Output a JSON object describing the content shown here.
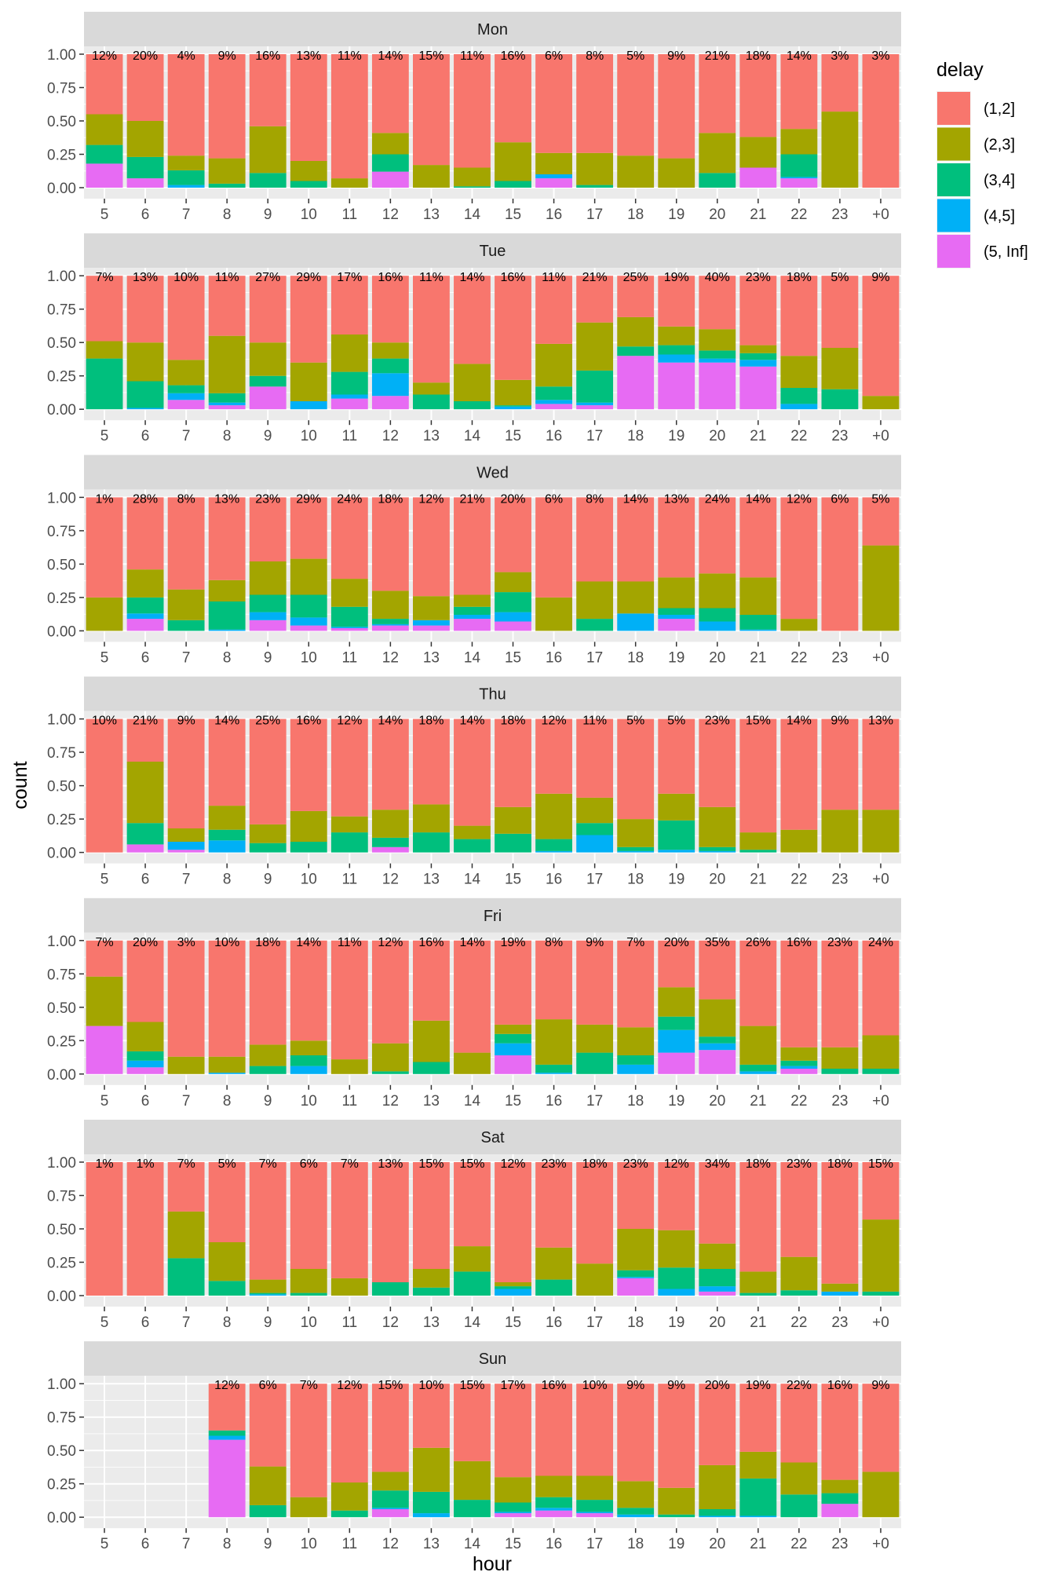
{
  "chart_data": {
    "type": "bar",
    "stacked": "fill",
    "facet_by": "weekday",
    "xlabel": "hour",
    "ylabel": "count",
    "ylim": [
      0,
      1
    ],
    "y_ticks": [
      "0.00",
      "0.25",
      "0.50",
      "0.75",
      "1.00"
    ],
    "x_categories": [
      "5",
      "6",
      "7",
      "8",
      "9",
      "10",
      "11",
      "12",
      "13",
      "14",
      "15",
      "16",
      "17",
      "18",
      "19",
      "20",
      "21",
      "22",
      "23",
      "+0"
    ],
    "legend": {
      "title": "delay",
      "position": "right",
      "entries": [
        {
          "label": "(1,2]",
          "color": "#F8766D"
        },
        {
          "label": "(2,3]",
          "color": "#A3A500"
        },
        {
          "label": "(3,4]",
          "color": "#00BF7D"
        },
        {
          "label": "(4,5]",
          "color": "#00B0F6"
        },
        {
          "label": "(5, Inf]",
          "color": "#E76BF3"
        }
      ]
    },
    "panel_background": "#EBEBEB",
    "strip_background": "#D9D9D9",
    "grid": true,
    "stack_note": "each bar lists cumulative tops of (5,Inf], (4,5], (3,4], (2,3] from bottom; (1,2] fills to 1.00",
    "panels": [
      {
        "label": "Mon",
        "pcts": [
          "12%",
          "20%",
          "4%",
          "9%",
          "16%",
          "13%",
          "11%",
          "14%",
          "15%",
          "11%",
          "16%",
          "6%",
          "8%",
          "5%",
          "9%",
          "21%",
          "18%",
          "14%",
          "3%",
          "3%"
        ],
        "stacks": [
          [
            0.18,
            0.18,
            0.32,
            0.55
          ],
          [
            0.07,
            0.07,
            0.23,
            0.5
          ],
          [
            0,
            0.02,
            0.13,
            0.24
          ],
          [
            0,
            0,
            0.03,
            0.22
          ],
          [
            0,
            0,
            0.11,
            0.46
          ],
          [
            0,
            0,
            0.05,
            0.2
          ],
          [
            0,
            0,
            0,
            0.07
          ],
          [
            0.12,
            0.12,
            0.25,
            0.41
          ],
          [
            0,
            0,
            0,
            0.17
          ],
          [
            0,
            0,
            0.01,
            0.15
          ],
          [
            0,
            0,
            0.05,
            0.34
          ],
          [
            0.07,
            0.1,
            0.1,
            0.26
          ],
          [
            0,
            0,
            0.02,
            0.26
          ],
          [
            0,
            0,
            0,
            0.24
          ],
          [
            0,
            0,
            0,
            0.22
          ],
          [
            0,
            0,
            0.11,
            0.41
          ],
          [
            0.15,
            0.15,
            0.15,
            0.38
          ],
          [
            0.07,
            0.08,
            0.25,
            0.44
          ],
          [
            0,
            0,
            0,
            0.57
          ],
          [
            0,
            0,
            0,
            0
          ]
        ]
      },
      {
        "label": "Tue",
        "pcts": [
          "7%",
          "13%",
          "10%",
          "11%",
          "27%",
          "29%",
          "17%",
          "16%",
          "11%",
          "14%",
          "16%",
          "11%",
          "21%",
          "25%",
          "19%",
          "40%",
          "23%",
          "18%",
          "5%",
          "9%"
        ],
        "stacks": [
          [
            0,
            0,
            0.38,
            0.51
          ],
          [
            0,
            0.01,
            0.21,
            0.5
          ],
          [
            0.07,
            0.12,
            0.18,
            0.37
          ],
          [
            0.03,
            0.05,
            0.12,
            0.55
          ],
          [
            0.17,
            0.17,
            0.25,
            0.5
          ],
          [
            0,
            0.06,
            0.06,
            0.35
          ],
          [
            0.08,
            0.11,
            0.28,
            0.56
          ],
          [
            0.1,
            0.27,
            0.38,
            0.5
          ],
          [
            0,
            0,
            0.11,
            0.2
          ],
          [
            0,
            0,
            0.06,
            0.34
          ],
          [
            0,
            0.02,
            0.03,
            0.22
          ],
          [
            0.04,
            0.07,
            0.17,
            0.49
          ],
          [
            0.03,
            0.05,
            0.29,
            0.65
          ],
          [
            0.4,
            0.4,
            0.47,
            0.69
          ],
          [
            0.35,
            0.41,
            0.48,
            0.62
          ],
          [
            0.35,
            0.38,
            0.44,
            0.6
          ],
          [
            0.32,
            0.37,
            0.42,
            0.48
          ],
          [
            0,
            0.04,
            0.16,
            0.4
          ],
          [
            0,
            0,
            0.15,
            0.46
          ],
          [
            0,
            0,
            0,
            0.1
          ]
        ]
      },
      {
        "label": "Wed",
        "pcts": [
          "1%",
          "28%",
          "8%",
          "13%",
          "23%",
          "29%",
          "24%",
          "18%",
          "12%",
          "21%",
          "20%",
          "6%",
          "8%",
          "14%",
          "13%",
          "24%",
          "14%",
          "12%",
          "6%",
          "5%"
        ],
        "stacks": [
          [
            0,
            0,
            0,
            0.25
          ],
          [
            0.09,
            0.13,
            0.25,
            0.46
          ],
          [
            0,
            0,
            0.08,
            0.31
          ],
          [
            0,
            0.01,
            0.22,
            0.38
          ],
          [
            0.08,
            0.14,
            0.27,
            0.52
          ],
          [
            0.04,
            0.1,
            0.27,
            0.54
          ],
          [
            0.02,
            0.03,
            0.18,
            0.39
          ],
          [
            0.04,
            0.05,
            0.09,
            0.3
          ],
          [
            0.04,
            0.08,
            0.08,
            0.26
          ],
          [
            0.09,
            0.12,
            0.18,
            0.27
          ],
          [
            0.07,
            0.14,
            0.29,
            0.44
          ],
          [
            0,
            0,
            0,
            0.25
          ],
          [
            0,
            0,
            0.09,
            0.37
          ],
          [
            0,
            0.13,
            0.13,
            0.37
          ],
          [
            0.09,
            0.12,
            0.17,
            0.4
          ],
          [
            0,
            0.07,
            0.17,
            0.43
          ],
          [
            0,
            0.01,
            0.12,
            0.4
          ],
          [
            0,
            0,
            0,
            0.09
          ],
          [
            0,
            0,
            0,
            0
          ],
          [
            0,
            0,
            0,
            0.64
          ]
        ]
      },
      {
        "label": "Thu",
        "pcts": [
          "10%",
          "21%",
          "9%",
          "14%",
          "25%",
          "16%",
          "12%",
          "14%",
          "18%",
          "14%",
          "18%",
          "12%",
          "11%",
          "5%",
          "5%",
          "23%",
          "15%",
          "14%",
          "9%",
          "13%"
        ],
        "stacks": [
          [
            0,
            0,
            0,
            0
          ],
          [
            0.06,
            0.06,
            0.22,
            0.68
          ],
          [
            0.02,
            0.08,
            0.08,
            0.18
          ],
          [
            0,
            0.09,
            0.17,
            0.35
          ],
          [
            0,
            0,
            0.07,
            0.21
          ],
          [
            0,
            0,
            0.08,
            0.31
          ],
          [
            0,
            0,
            0.15,
            0.27
          ],
          [
            0.04,
            0.04,
            0.11,
            0.32
          ],
          [
            0,
            0,
            0.15,
            0.36
          ],
          [
            0,
            0,
            0.1,
            0.2
          ],
          [
            0,
            0,
            0.14,
            0.34
          ],
          [
            0,
            0.01,
            0.1,
            0.44
          ],
          [
            0,
            0.13,
            0.22,
            0.41
          ],
          [
            0,
            0.01,
            0.04,
            0.25
          ],
          [
            0,
            0.02,
            0.24,
            0.44
          ],
          [
            0,
            0.01,
            0.04,
            0.34
          ],
          [
            0,
            0,
            0.02,
            0.15
          ],
          [
            0,
            0,
            0,
            0.17
          ],
          [
            0,
            0,
            0,
            0.32
          ],
          [
            0,
            0,
            0,
            0.32
          ]
        ]
      },
      {
        "label": "Fri",
        "pcts": [
          "7%",
          "20%",
          "3%",
          "10%",
          "18%",
          "14%",
          "11%",
          "12%",
          "16%",
          "14%",
          "19%",
          "8%",
          "9%",
          "7%",
          "20%",
          "35%",
          "26%",
          "16%",
          "23%",
          "24%"
        ],
        "stacks": [
          [
            0.36,
            0.36,
            0.36,
            0.73
          ],
          [
            0.05,
            0.1,
            0.17,
            0.39
          ],
          [
            0,
            0,
            0,
            0.13
          ],
          [
            0,
            0.01,
            0.01,
            0.13
          ],
          [
            0,
            0,
            0.06,
            0.22
          ],
          [
            0,
            0.06,
            0.14,
            0.25
          ],
          [
            0,
            0,
            0,
            0.11
          ],
          [
            0,
            0,
            0.02,
            0.23
          ],
          [
            0,
            0,
            0.09,
            0.4
          ],
          [
            0,
            0,
            0,
            0.16
          ],
          [
            0.14,
            0.23,
            0.3,
            0.37
          ],
          [
            0,
            0.01,
            0.07,
            0.41
          ],
          [
            0,
            0,
            0.16,
            0.37
          ],
          [
            0,
            0.07,
            0.14,
            0.35
          ],
          [
            0.16,
            0.33,
            0.43,
            0.65
          ],
          [
            0.18,
            0.23,
            0.28,
            0.56
          ],
          [
            0,
            0.02,
            0.07,
            0.36
          ],
          [
            0.04,
            0.06,
            0.1,
            0.2
          ],
          [
            0,
            0,
            0.04,
            0.2
          ],
          [
            0,
            0,
            0.04,
            0.29
          ]
        ]
      },
      {
        "label": "Sat",
        "pcts": [
          "1%",
          "1%",
          "7%",
          "5%",
          "7%",
          "6%",
          "7%",
          "13%",
          "15%",
          "15%",
          "12%",
          "23%",
          "18%",
          "23%",
          "12%",
          "34%",
          "18%",
          "23%",
          "18%",
          "15%"
        ],
        "stacks": [
          [
            0,
            0,
            0,
            0
          ],
          [
            0,
            0,
            0,
            0
          ],
          [
            0,
            0,
            0.28,
            0.63
          ],
          [
            0,
            0,
            0.11,
            0.4
          ],
          [
            0,
            0.01,
            0.02,
            0.12
          ],
          [
            0,
            0,
            0.02,
            0.2
          ],
          [
            0,
            0,
            0,
            0.13
          ],
          [
            0,
            0,
            0.1,
            0.1
          ],
          [
            0,
            0,
            0.06,
            0.2
          ],
          [
            0,
            0,
            0.18,
            0.37
          ],
          [
            0,
            0.05,
            0.07,
            0.1
          ],
          [
            0,
            0,
            0.12,
            0.36
          ],
          [
            0,
            0,
            0,
            0.24
          ],
          [
            0.13,
            0.14,
            0.19,
            0.5
          ],
          [
            0,
            0.05,
            0.21,
            0.49
          ],
          [
            0.03,
            0.07,
            0.2,
            0.39
          ],
          [
            0,
            0,
            0.02,
            0.18
          ],
          [
            0,
            0,
            0.04,
            0.29
          ],
          [
            0,
            0.03,
            0.03,
            0.09
          ],
          [
            0,
            0,
            0.03,
            0.57
          ]
        ]
      },
      {
        "label": "Sun",
        "pcts": [
          "",
          "",
          "",
          "12%",
          "6%",
          "7%",
          "12%",
          "15%",
          "10%",
          "15%",
          "17%",
          "16%",
          "10%",
          "9%",
          "9%",
          "20%",
          "19%",
          "22%",
          "16%",
          "9%"
        ],
        "stacks": [
          null,
          null,
          null,
          [
            0.58,
            0.61,
            0.65,
            0.65
          ],
          [
            0,
            0,
            0.09,
            0.38
          ],
          [
            0,
            0,
            0,
            0.15
          ],
          [
            0,
            0,
            0.05,
            0.26
          ],
          [
            0.06,
            0.07,
            0.2,
            0.34
          ],
          [
            0,
            0.03,
            0.19,
            0.52
          ],
          [
            0,
            0,
            0.13,
            0.42
          ],
          [
            0.03,
            0.04,
            0.11,
            0.3
          ],
          [
            0.05,
            0.07,
            0.15,
            0.31
          ],
          [
            0.03,
            0.04,
            0.13,
            0.31
          ],
          [
            0,
            0.02,
            0.07,
            0.27
          ],
          [
            0,
            0,
            0.02,
            0.22
          ],
          [
            0,
            0.01,
            0.06,
            0.39
          ],
          [
            0,
            0.01,
            0.29,
            0.49
          ],
          [
            0,
            0,
            0.17,
            0.41
          ],
          [
            0.1,
            0.1,
            0.18,
            0.28
          ],
          [
            0,
            0,
            0,
            0.34
          ]
        ]
      }
    ]
  }
}
